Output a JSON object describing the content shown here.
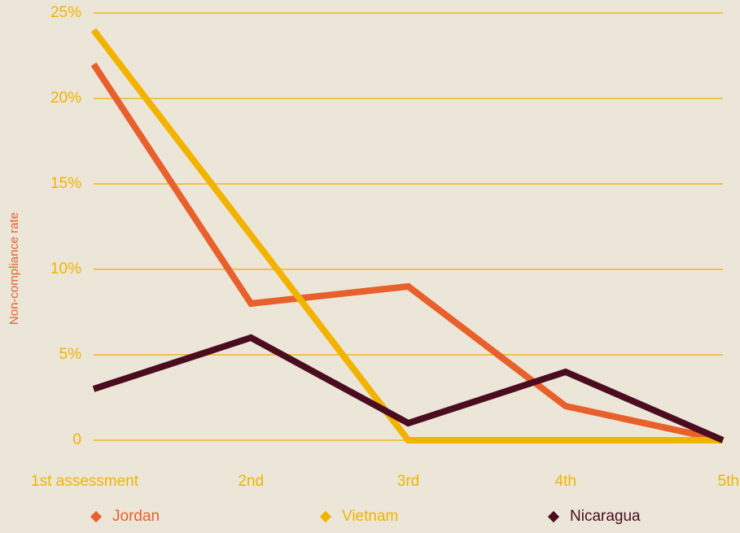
{
  "chart_data": {
    "type": "line",
    "y_label": "Non-compliance rate",
    "categories": [
      "1st assessment",
      "2nd",
      "3rd",
      "4th",
      "5th"
    ],
    "series": [
      {
        "name": "Jordan",
        "color": "#e8602c",
        "values": [
          22,
          8,
          9,
          2,
          0
        ]
      },
      {
        "name": "Vietnam",
        "color": "#f2b300",
        "values": [
          24,
          12,
          0,
          0,
          0
        ]
      },
      {
        "name": "Nicaragua",
        "color": "#4a0c1e",
        "values": [
          3,
          6,
          1,
          4,
          0
        ]
      }
    ],
    "ylim": [
      0,
      25
    ],
    "yticks": [
      0,
      {
        "value": 5,
        "label": "5%"
      },
      {
        "value": 10,
        "label": "10%"
      },
      {
        "value": 15,
        "label": "15%"
      },
      {
        "value": 20,
        "label": "20%"
      },
      {
        "value": 25,
        "label": "25%"
      }
    ],
    "grid": true
  }
}
